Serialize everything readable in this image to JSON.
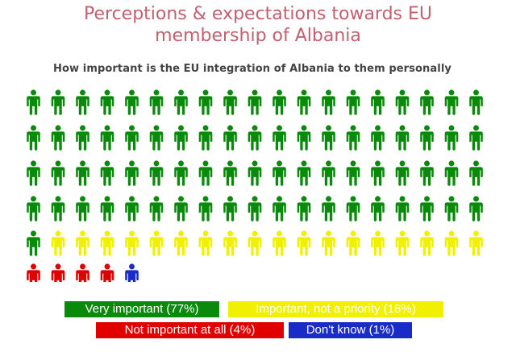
{
  "page": {
    "title_line1": "Perceptions & expectations towards EU",
    "title_line2": "membership of Albania",
    "subtitle": "How important is the EU integration of Albania to them personally"
  },
  "chart_data": {
    "type": "pictogram",
    "icon": "person-icon",
    "total_icons": 100,
    "icons_per_row": 19,
    "series": [
      {
        "name": "Very important (77%)",
        "value": 77,
        "color": "#0a8a0a"
      },
      {
        "name": "Important, not a priority (18%)",
        "value": 18,
        "color": "#f0f000"
      },
      {
        "name": "Not important at all (4%)",
        "value": 4,
        "color": "#e00000"
      },
      {
        "name": "Don't know (1%)",
        "value": 1,
        "color": "#1a2cc8"
      }
    ],
    "legend_text_colors": [
      "#ffffff",
      "#ffffff",
      "#ffffff",
      "#ffffff"
    ]
  }
}
